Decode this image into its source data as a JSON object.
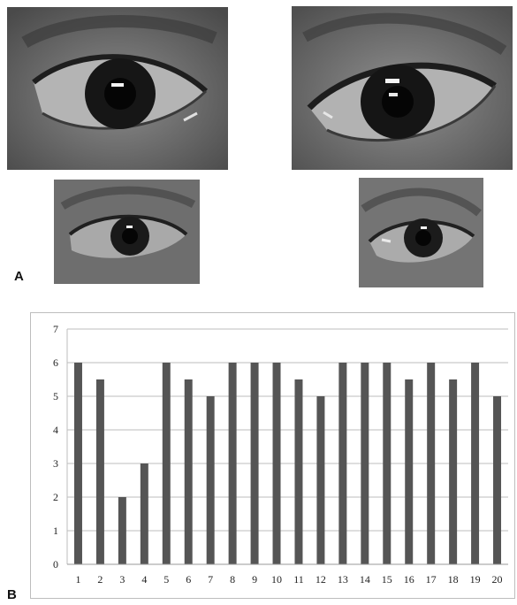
{
  "panels": {
    "a_label": "A",
    "b_label": "B"
  },
  "photos": [
    {
      "name": "photo-top-left",
      "subject": "eye-left-large",
      "tone": "#6d6d6d"
    },
    {
      "name": "photo-top-right",
      "subject": "eye-right-large",
      "tone": "#737373"
    },
    {
      "name": "photo-bottom-left",
      "subject": "eye-left-small",
      "tone": "#707070"
    },
    {
      "name": "photo-bottom-right",
      "subject": "eye-right-small",
      "tone": "#747474"
    }
  ],
  "chart_data": {
    "type": "bar",
    "categories": [
      "1",
      "2",
      "3",
      "4",
      "5",
      "6",
      "7",
      "8",
      "9",
      "10",
      "11",
      "12",
      "13",
      "14",
      "15",
      "16",
      "17",
      "18",
      "19",
      "20"
    ],
    "values": [
      6,
      5.5,
      2,
      3,
      6,
      5.5,
      5,
      6,
      6,
      6,
      5.5,
      5,
      6,
      6,
      6,
      5.5,
      6,
      5.5,
      6,
      5
    ],
    "ylim": [
      0,
      7
    ],
    "yticks": [
      "0",
      "1",
      "2",
      "3",
      "4",
      "5",
      "6",
      "7"
    ],
    "grid": true,
    "bar_color": "#555555",
    "grid_color": "#bdbdbd",
    "title": "",
    "xlabel": "",
    "ylabel": ""
  }
}
